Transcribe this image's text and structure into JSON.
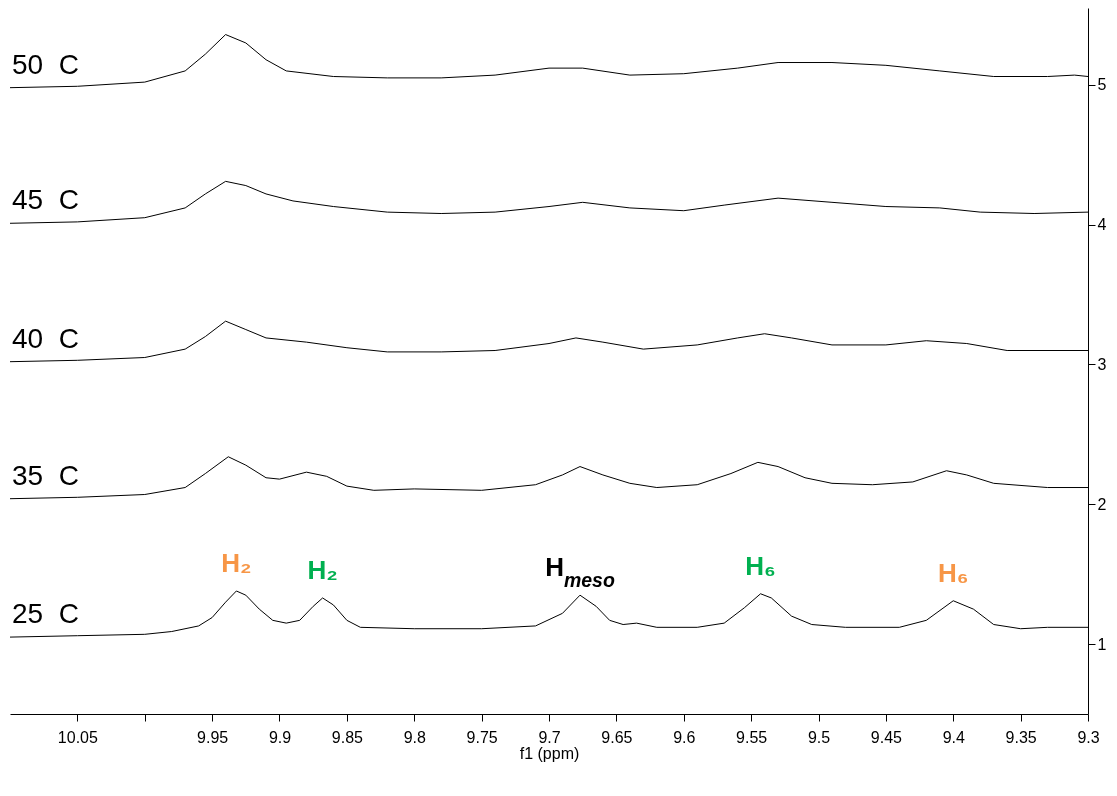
{
  "chart_data": {
    "type": "line",
    "xlabel": "f1 (ppm)",
    "xlim": [
      10.1,
      9.3
    ],
    "xticks": [
      10.05,
      {
        "value": 10.0,
        "label": null
      },
      9.95,
      9.9,
      9.85,
      9.8,
      9.75,
      9.7,
      9.65,
      9.6,
      9.55,
      9.5,
      9.45,
      9.4,
      9.35,
      9.3
    ],
    "ylim": [
      0.5,
      5.55
    ],
    "yticks": [
      1,
      2,
      3,
      4,
      5
    ],
    "grid": false,
    "marker": "none",
    "line_style": "solid",
    "series": [
      {
        "name": "50  C",
        "color": "#000000",
        "x": [
          10.1,
          10.05,
          10.0,
          9.97,
          9.955,
          9.94,
          9.925,
          9.91,
          9.895,
          9.86,
          9.82,
          9.78,
          9.74,
          9.7,
          9.675,
          9.64,
          9.6,
          9.56,
          9.53,
          9.49,
          9.45,
          9.41,
          9.37,
          9.33,
          9.31,
          9.3
        ],
        "values": [
          4.98,
          4.99,
          5.02,
          5.1,
          5.22,
          5.36,
          5.3,
          5.18,
          5.1,
          5.06,
          5.05,
          5.05,
          5.07,
          5.12,
          5.12,
          5.07,
          5.08,
          5.12,
          5.16,
          5.16,
          5.14,
          5.1,
          5.06,
          5.06,
          5.07,
          5.06
        ]
      },
      {
        "name": "45  C",
        "color": "#000000",
        "x": [
          10.1,
          10.05,
          10.0,
          9.97,
          9.955,
          9.94,
          9.925,
          9.91,
          9.89,
          9.86,
          9.82,
          9.78,
          9.74,
          9.7,
          9.675,
          9.64,
          9.6,
          9.57,
          9.53,
          9.49,
          9.45,
          9.41,
          9.38,
          9.34,
          9.3
        ],
        "values": [
          4.01,
          4.02,
          4.05,
          4.12,
          4.22,
          4.31,
          4.28,
          4.22,
          4.17,
          4.13,
          4.09,
          4.08,
          4.09,
          4.13,
          4.16,
          4.12,
          4.1,
          4.14,
          4.19,
          4.16,
          4.13,
          4.12,
          4.09,
          4.08,
          4.09
        ]
      },
      {
        "name": "40  C",
        "color": "#000000",
        "x": [
          10.1,
          10.05,
          10.0,
          9.97,
          9.955,
          9.94,
          9.925,
          9.91,
          9.88,
          9.85,
          9.82,
          9.78,
          9.74,
          9.7,
          9.68,
          9.66,
          9.63,
          9.59,
          9.56,
          9.54,
          9.52,
          9.49,
          9.45,
          9.42,
          9.39,
          9.36,
          9.3
        ],
        "values": [
          3.02,
          3.03,
          3.05,
          3.11,
          3.2,
          3.31,
          3.25,
          3.19,
          3.16,
          3.12,
          3.09,
          3.09,
          3.1,
          3.15,
          3.19,
          3.16,
          3.11,
          3.14,
          3.19,
          3.22,
          3.19,
          3.14,
          3.14,
          3.17,
          3.15,
          3.1,
          3.1
        ]
      },
      {
        "name": "35  C",
        "color": "#000000",
        "x": [
          10.1,
          10.05,
          10.0,
          9.97,
          9.955,
          9.938,
          9.925,
          9.91,
          9.9,
          9.88,
          9.865,
          9.85,
          9.83,
          9.8,
          9.75,
          9.71,
          9.69,
          9.677,
          9.66,
          9.64,
          9.62,
          9.59,
          9.565,
          9.545,
          9.53,
          9.51,
          9.49,
          9.46,
          9.43,
          9.405,
          9.39,
          9.37,
          9.33,
          9.3
        ],
        "values": [
          2.04,
          2.05,
          2.07,
          2.12,
          2.22,
          2.34,
          2.28,
          2.19,
          2.18,
          2.23,
          2.2,
          2.13,
          2.1,
          2.11,
          2.1,
          2.14,
          2.21,
          2.27,
          2.21,
          2.15,
          2.12,
          2.14,
          2.22,
          2.3,
          2.27,
          2.19,
          2.15,
          2.14,
          2.16,
          2.24,
          2.21,
          2.15,
          2.12,
          2.12
        ]
      },
      {
        "name": "25  C",
        "color": "#000000",
        "x": [
          10.1,
          10.05,
          10.0,
          9.98,
          9.96,
          9.95,
          9.94,
          9.932,
          9.925,
          9.915,
          9.905,
          9.895,
          9.885,
          9.875,
          9.868,
          9.86,
          9.85,
          9.84,
          9.8,
          9.75,
          9.71,
          9.69,
          9.677,
          9.665,
          9.655,
          9.645,
          9.635,
          9.62,
          9.59,
          9.57,
          9.555,
          9.543,
          9.535,
          9.52,
          9.505,
          9.48,
          9.44,
          9.42,
          9.4,
          9.385,
          9.37,
          9.35,
          9.33,
          9.3
        ],
        "values": [
          1.05,
          1.06,
          1.07,
          1.09,
          1.13,
          1.19,
          1.3,
          1.38,
          1.35,
          1.25,
          1.17,
          1.15,
          1.17,
          1.27,
          1.33,
          1.28,
          1.17,
          1.12,
          1.11,
          1.11,
          1.13,
          1.22,
          1.35,
          1.27,
          1.17,
          1.14,
          1.15,
          1.12,
          1.12,
          1.15,
          1.26,
          1.36,
          1.33,
          1.2,
          1.14,
          1.12,
          1.12,
          1.17,
          1.31,
          1.25,
          1.14,
          1.11,
          1.12,
          1.12
        ]
      }
    ],
    "annotations": [
      {
        "text": "H₂",
        "x": 9.932,
        "y": 1.38
      },
      {
        "text": "H₂",
        "x": 9.868,
        "y": 1.33
      },
      {
        "text": "H$_{meso}$",
        "x": 9.677,
        "y": 1.35
      },
      {
        "text": "H₆",
        "x": 9.543,
        "y": 1.36
      },
      {
        "text": "H₆",
        "x": 9.4,
        "y": 1.31
      }
    ]
  }
}
